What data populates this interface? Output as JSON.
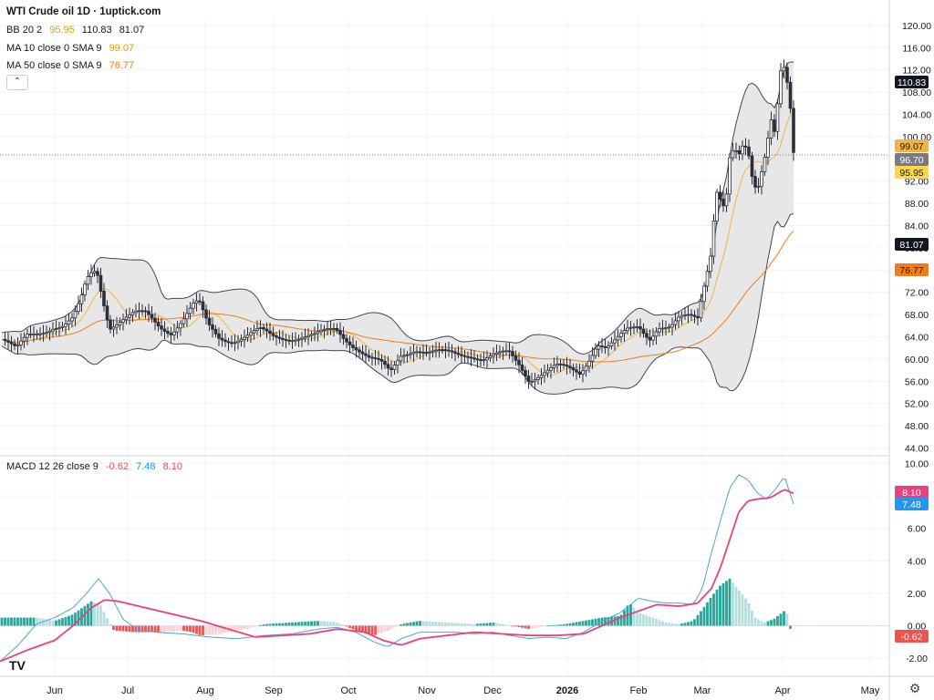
{
  "header": {
    "title": "WTI Crude oil  1D · 1uptick.com",
    "bb": {
      "label": "BB 20 2",
      "v1": "95.95",
      "v2": "110.83",
      "v3": "81.07"
    },
    "ma10": {
      "label": "MA 10 close 0 SMA 9",
      "value": "99.07"
    },
    "ma50": {
      "label": "MA 50 close 0 SMA 9",
      "value": "76.77"
    },
    "macd": {
      "label": "MACD 12 26 close 9",
      "v1": "-0.62",
      "v2": "7.48",
      "v3": "8.10"
    },
    "collapse_icon": "chevron-up-icon"
  },
  "colors": {
    "candle_up": "#ffffff",
    "candle_down": "#2a2e39",
    "bb_fill": "#e7e7e8",
    "bb_line": "#434651",
    "ma10": "#f2b342",
    "ma50": "#ef7d19",
    "macd": "#4aa3df",
    "signal": "#ec407a",
    "hist_up_strong": "#26a69a",
    "hist_up_weak": "#b2dfdb",
    "hist_down_strong": "#ef5350",
    "hist_down_weak": "#ffcdd2"
  },
  "chart_data": {
    "type": "candlestick",
    "x_labels": [
      "Jun",
      "Jul",
      "Aug",
      "Sep",
      "Oct",
      "Nov",
      "Dec",
      "2026",
      "Feb",
      "Mar",
      "Apr",
      "May"
    ],
    "price_axis": {
      "ticks": [
        "120.00",
        "116.00",
        "112.00",
        "108.00",
        "104.00",
        "100.00",
        "96.00",
        "92.00",
        "88.00",
        "84.00",
        "80.00",
        "76.00",
        "72.00",
        "68.00",
        "64.00",
        "60.00",
        "56.00",
        "52.00",
        "48.00",
        "44.00"
      ],
      "min": 44,
      "max": 120
    },
    "price_tags": {
      "bb_upper": "110.83",
      "ma10": "99.07",
      "last": "96.70",
      "bb_basis": "95.95",
      "bb_lower": "81.07",
      "ma50": "76.77"
    },
    "macd_axis": {
      "ticks": [
        "10.00",
        "8.00",
        "6.00",
        "4.00",
        "2.00",
        "0.00",
        "-2.00"
      ],
      "min": -2.5,
      "max": 10
    },
    "macd_tags": {
      "signal": "8.10",
      "macd": "7.48",
      "hist": "-0.62"
    },
    "price_key": [
      [
        0,
        64
      ],
      [
        18,
        61.5
      ],
      [
        30,
        64
      ],
      [
        45,
        65
      ],
      [
        58,
        66
      ],
      [
        70,
        66
      ],
      [
        80,
        67
      ],
      [
        88,
        70
      ],
      [
        95,
        74
      ],
      [
        101,
        75.5
      ],
      [
        106,
        76
      ],
      [
        112,
        71.5
      ],
      [
        120,
        66
      ],
      [
        132,
        67
      ],
      [
        148,
        68
      ],
      [
        160,
        68
      ],
      [
        175,
        66
      ],
      [
        188,
        65
      ],
      [
        200,
        67
      ],
      [
        212,
        69.5
      ],
      [
        218,
        70
      ],
      [
        228,
        66
      ],
      [
        240,
        64
      ],
      [
        255,
        63.5
      ],
      [
        270,
        64
      ],
      [
        285,
        65
      ],
      [
        300,
        64
      ],
      [
        315,
        64
      ],
      [
        330,
        64
      ],
      [
        345,
        64
      ],
      [
        360,
        65
      ],
      [
        368,
        65.5
      ],
      [
        378,
        64
      ],
      [
        392,
        62
      ],
      [
        405,
        60
      ],
      [
        418,
        59
      ],
      [
        428,
        57.5
      ],
      [
        440,
        61
      ],
      [
        455,
        62
      ],
      [
        470,
        61
      ],
      [
        485,
        61
      ],
      [
        500,
        61
      ],
      [
        515,
        61
      ],
      [
        530,
        60
      ],
      [
        545,
        60.5
      ],
      [
        558,
        61
      ],
      [
        570,
        59
      ],
      [
        580,
        56.5
      ],
      [
        595,
        57.5
      ],
      [
        610,
        58.5
      ],
      [
        625,
        58
      ],
      [
        636,
        57.5
      ],
      [
        645,
        60
      ],
      [
        655,
        63
      ],
      [
        665,
        62
      ],
      [
        675,
        63
      ],
      [
        688,
        65
      ],
      [
        700,
        66
      ],
      [
        712,
        64
      ],
      [
        722,
        66
      ],
      [
        735,
        65.5
      ],
      [
        745,
        67
      ],
      [
        755,
        67.5
      ],
      [
        765,
        67.5
      ],
      [
        770,
        72
      ],
      [
        775,
        76
      ],
      [
        780,
        80
      ],
      [
        785,
        91
      ],
      [
        790,
        89
      ],
      [
        795,
        87
      ],
      [
        800,
        96
      ],
      [
        805,
        97.5
      ],
      [
        810,
        96
      ],
      [
        815,
        98
      ],
      [
        820,
        97
      ],
      [
        825,
        92
      ],
      [
        830,
        90
      ],
      [
        835,
        94
      ],
      [
        840,
        98
      ],
      [
        845,
        104
      ],
      [
        850,
        101
      ],
      [
        855,
        112
      ],
      [
        859,
        113
      ],
      [
        862,
        111
      ],
      [
        866,
        106
      ],
      [
        870,
        96.7
      ]
    ],
    "macd_key": [
      [
        0,
        -2.2
      ],
      [
        20,
        -1.2
      ],
      [
        40,
        0.1
      ],
      [
        60,
        0.5
      ],
      [
        80,
        1.1
      ],
      [
        95,
        2
      ],
      [
        108,
        2.9
      ],
      [
        120,
        2
      ],
      [
        135,
        0.4
      ],
      [
        150,
        -0.2
      ],
      [
        170,
        -0.4
      ],
      [
        200,
        -0.5
      ],
      [
        230,
        -0.7
      ],
      [
        260,
        -0.8
      ],
      [
        290,
        -0.6
      ],
      [
        320,
        -0.5
      ],
      [
        350,
        -0.2
      ],
      [
        370,
        -0.1
      ],
      [
        390,
        -0.4
      ],
      [
        410,
        -1.0
      ],
      [
        425,
        -1.3
      ],
      [
        440,
        -0.8
      ],
      [
        460,
        -0.4
      ],
      [
        480,
        -0.4
      ],
      [
        500,
        -0.4
      ],
      [
        520,
        -0.5
      ],
      [
        540,
        -0.4
      ],
      [
        560,
        -0.6
      ],
      [
        580,
        -0.8
      ],
      [
        600,
        -0.7
      ],
      [
        620,
        -0.8
      ],
      [
        640,
        -0.4
      ],
      [
        660,
        0.3
      ],
      [
        680,
        0.8
      ],
      [
        700,
        1.7
      ],
      [
        715,
        1.5
      ],
      [
        730,
        1.4
      ],
      [
        745,
        1.4
      ],
      [
        760,
        1.3
      ],
      [
        770,
        2.3
      ],
      [
        780,
        4.5
      ],
      [
        790,
        6.5
      ],
      [
        800,
        8.5
      ],
      [
        810,
        9.3
      ],
      [
        820,
        9.0
      ],
      [
        830,
        8.2
      ],
      [
        840,
        7.8
      ],
      [
        850,
        8.4
      ],
      [
        860,
        9.2
      ],
      [
        870,
        7.5
      ]
    ],
    "signal_key": [
      [
        0,
        -2.2
      ],
      [
        30,
        -1.5
      ],
      [
        60,
        -0.9
      ],
      [
        80,
        0
      ],
      [
        100,
        1.1
      ],
      [
        115,
        1.6
      ],
      [
        130,
        1.5
      ],
      [
        160,
        1.1
      ],
      [
        190,
        0.7
      ],
      [
        220,
        0.3
      ],
      [
        250,
        -0.2
      ],
      [
        280,
        -0.7
      ],
      [
        310,
        -0.6
      ],
      [
        340,
        -0.5
      ],
      [
        370,
        -0.2
      ],
      [
        400,
        -0.4
      ],
      [
        420,
        -0.9
      ],
      [
        440,
        -1.2
      ],
      [
        460,
        -0.8
      ],
      [
        490,
        -0.6
      ],
      [
        520,
        -0.4
      ],
      [
        550,
        -0.5
      ],
      [
        580,
        -0.6
      ],
      [
        610,
        -0.6
      ],
      [
        640,
        -0.5
      ],
      [
        660,
        0
      ],
      [
        680,
        0.5
      ],
      [
        700,
        0.9
      ],
      [
        720,
        1.3
      ],
      [
        745,
        1.2
      ],
      [
        765,
        1.4
      ],
      [
        780,
        2.3
      ],
      [
        790,
        3.6
      ],
      [
        800,
        5.3
      ],
      [
        810,
        7.0
      ],
      [
        820,
        7.7
      ],
      [
        830,
        7.8
      ],
      [
        845,
        7.9
      ],
      [
        860,
        8.4
      ],
      [
        872,
        8.1
      ]
    ],
    "hist_key": [
      [
        0,
        0.5
      ],
      [
        40,
        0.5
      ],
      [
        60,
        0.3
      ],
      [
        80,
        0.7
      ],
      [
        90,
        1.1
      ],
      [
        100,
        1.5
      ],
      [
        110,
        1.3
      ],
      [
        118,
        0.4
      ],
      [
        125,
        -0.3
      ],
      [
        150,
        -0.4
      ],
      [
        175,
        -0.4
      ],
      [
        200,
        -0.3
      ],
      [
        210,
        -0.4
      ],
      [
        220,
        -0.6
      ],
      [
        240,
        -0.5
      ],
      [
        270,
        -0.2
      ],
      [
        290,
        0.1
      ],
      [
        320,
        0.2
      ],
      [
        350,
        0.3
      ],
      [
        370,
        0.2
      ],
      [
        390,
        -0.3
      ],
      [
        410,
        -0.6
      ],
      [
        425,
        -0.3
      ],
      [
        440,
        0.1
      ],
      [
        460,
        0.3
      ],
      [
        490,
        0.2
      ],
      [
        520,
        0.1
      ],
      [
        540,
        0.2
      ],
      [
        560,
        0
      ],
      [
        580,
        -0.2
      ],
      [
        600,
        0
      ],
      [
        620,
        0.1
      ],
      [
        640,
        0.3
      ],
      [
        660,
        0.5
      ],
      [
        680,
        0.6
      ],
      [
        690,
        1.4
      ],
      [
        700,
        0.8
      ],
      [
        715,
        0.5
      ],
      [
        730,
        0.2
      ],
      [
        745,
        0.1
      ],
      [
        760,
        0.3
      ],
      [
        770,
        1.0
      ],
      [
        780,
        1.8
      ],
      [
        790,
        2.5
      ],
      [
        800,
        2.9
      ],
      [
        810,
        2.2
      ],
      [
        820,
        1.5
      ],
      [
        828,
        0.5
      ],
      [
        838,
        0.2
      ],
      [
        848,
        0.4
      ],
      [
        855,
        0.7
      ],
      [
        862,
        1.0
      ],
      [
        868,
        -0.6
      ]
    ]
  }
}
